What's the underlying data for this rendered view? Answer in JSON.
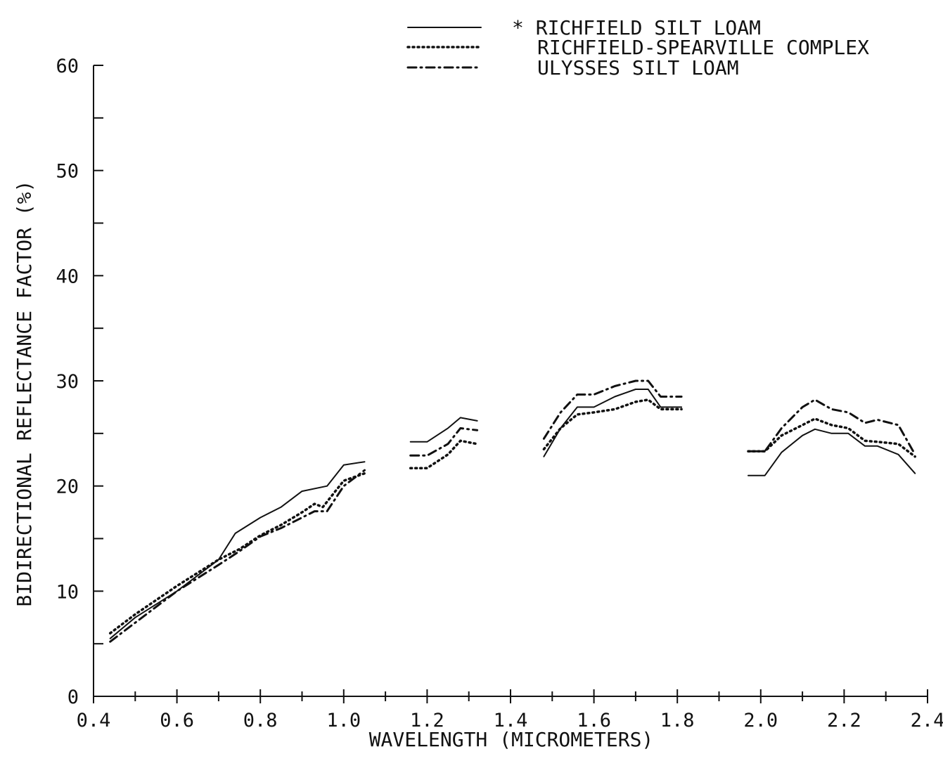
{
  "chart_data": {
    "type": "line",
    "title": "",
    "xlabel": "WAVELENGTH (MICROMETERS)",
    "ylabel": "BIDIRECTIONAL REFLECTANCE FACTOR (%)",
    "xlim": [
      0.4,
      2.4
    ],
    "ylim": [
      0,
      60
    ],
    "xticks": [
      "0.4",
      "0.6",
      "0.8",
      "1.0",
      "1.2",
      "1.4",
      "1.6",
      "1.8",
      "2.0",
      "2.2",
      "2.4"
    ],
    "yticks": [
      "0",
      "10",
      "20",
      "30",
      "40",
      "50",
      "60"
    ],
    "grid": false,
    "legend_position": "top-right",
    "series": [
      {
        "name": "* RICHFIELD SILT LOAM",
        "style": "solid",
        "segments": [
          [
            [
              0.44,
              5.5
            ],
            [
              0.5,
              7.5
            ],
            [
              0.6,
              10.0
            ],
            [
              0.7,
              13.0
            ],
            [
              0.74,
              15.5
            ],
            [
              0.8,
              17.0
            ],
            [
              0.85,
              18.0
            ],
            [
              0.9,
              19.5
            ],
            [
              0.96,
              20.0
            ],
            [
              1.0,
              22.0
            ],
            [
              1.05,
              22.3
            ]
          ],
          [
            [
              1.16,
              24.2
            ],
            [
              1.2,
              24.2
            ],
            [
              1.25,
              25.5
            ],
            [
              1.28,
              26.5
            ],
            [
              1.32,
              26.2
            ]
          ],
          [
            [
              1.48,
              22.8
            ],
            [
              1.52,
              25.5
            ],
            [
              1.56,
              27.5
            ],
            [
              1.6,
              27.5
            ],
            [
              1.65,
              28.5
            ],
            [
              1.7,
              29.2
            ],
            [
              1.73,
              29.2
            ],
            [
              1.76,
              27.5
            ],
            [
              1.81,
              27.5
            ]
          ],
          [
            [
              1.97,
              21.0
            ],
            [
              2.01,
              21.0
            ],
            [
              2.05,
              23.2
            ],
            [
              2.1,
              24.8
            ],
            [
              2.13,
              25.4
            ],
            [
              2.17,
              25.0
            ],
            [
              2.21,
              25.0
            ],
            [
              2.25,
              23.8
            ],
            [
              2.28,
              23.8
            ],
            [
              2.33,
              23.0
            ],
            [
              2.37,
              21.2
            ]
          ]
        ]
      },
      {
        "name": "RICHFIELD-SPEARVILLE COMPLEX",
        "style": "dotted",
        "segments": [
          [
            [
              0.44,
              6.0
            ],
            [
              0.5,
              7.8
            ],
            [
              0.6,
              10.5
            ],
            [
              0.7,
              13.0
            ],
            [
              0.75,
              14.0
            ],
            [
              0.8,
              15.3
            ],
            [
              0.85,
              16.3
            ],
            [
              0.9,
              17.5
            ],
            [
              0.93,
              18.3
            ],
            [
              0.95,
              18.0
            ],
            [
              0.98,
              19.5
            ],
            [
              1.0,
              20.5
            ],
            [
              1.05,
              21.2
            ]
          ],
          [
            [
              1.16,
              21.7
            ],
            [
              1.2,
              21.7
            ],
            [
              1.25,
              23.0
            ],
            [
              1.28,
              24.3
            ],
            [
              1.32,
              24.0
            ]
          ],
          [
            [
              1.48,
              23.5
            ],
            [
              1.52,
              25.5
            ],
            [
              1.56,
              26.8
            ],
            [
              1.6,
              27.0
            ],
            [
              1.65,
              27.3
            ],
            [
              1.7,
              28.0
            ],
            [
              1.73,
              28.2
            ],
            [
              1.76,
              27.3
            ],
            [
              1.81,
              27.3
            ]
          ],
          [
            [
              1.97,
              23.3
            ],
            [
              2.01,
              23.3
            ],
            [
              2.05,
              24.8
            ],
            [
              2.1,
              25.8
            ],
            [
              2.13,
              26.4
            ],
            [
              2.17,
              25.8
            ],
            [
              2.21,
              25.5
            ],
            [
              2.25,
              24.3
            ],
            [
              2.28,
              24.2
            ],
            [
              2.33,
              24.0
            ],
            [
              2.37,
              22.8
            ]
          ]
        ]
      },
      {
        "name": "ULYSSES SILT LOAM",
        "style": "dashdot",
        "segments": [
          [
            [
              0.44,
              5.2
            ],
            [
              0.5,
              7.0
            ],
            [
              0.6,
              10.0
            ],
            [
              0.7,
              12.5
            ],
            [
              0.75,
              13.8
            ],
            [
              0.8,
              15.2
            ],
            [
              0.85,
              16.0
            ],
            [
              0.9,
              17.0
            ],
            [
              0.93,
              17.6
            ],
            [
              0.96,
              17.6
            ],
            [
              1.0,
              20.0
            ],
            [
              1.05,
              21.5
            ]
          ],
          [
            [
              1.16,
              22.9
            ],
            [
              1.2,
              22.9
            ],
            [
              1.25,
              24.0
            ],
            [
              1.28,
              25.5
            ],
            [
              1.32,
              25.3
            ]
          ],
          [
            [
              1.48,
              24.5
            ],
            [
              1.52,
              27.0
            ],
            [
              1.56,
              28.7
            ],
            [
              1.6,
              28.7
            ],
            [
              1.65,
              29.5
            ],
            [
              1.7,
              30.0
            ],
            [
              1.73,
              30.0
            ],
            [
              1.76,
              28.5
            ],
            [
              1.81,
              28.5
            ]
          ],
          [
            [
              1.97,
              23.3
            ],
            [
              2.01,
              23.3
            ],
            [
              2.05,
              25.5
            ],
            [
              2.1,
              27.5
            ],
            [
              2.13,
              28.2
            ],
            [
              2.17,
              27.3
            ],
            [
              2.21,
              27.0
            ],
            [
              2.25,
              26.0
            ],
            [
              2.28,
              26.3
            ],
            [
              2.33,
              25.8
            ],
            [
              2.37,
              23.0
            ]
          ]
        ]
      }
    ]
  }
}
